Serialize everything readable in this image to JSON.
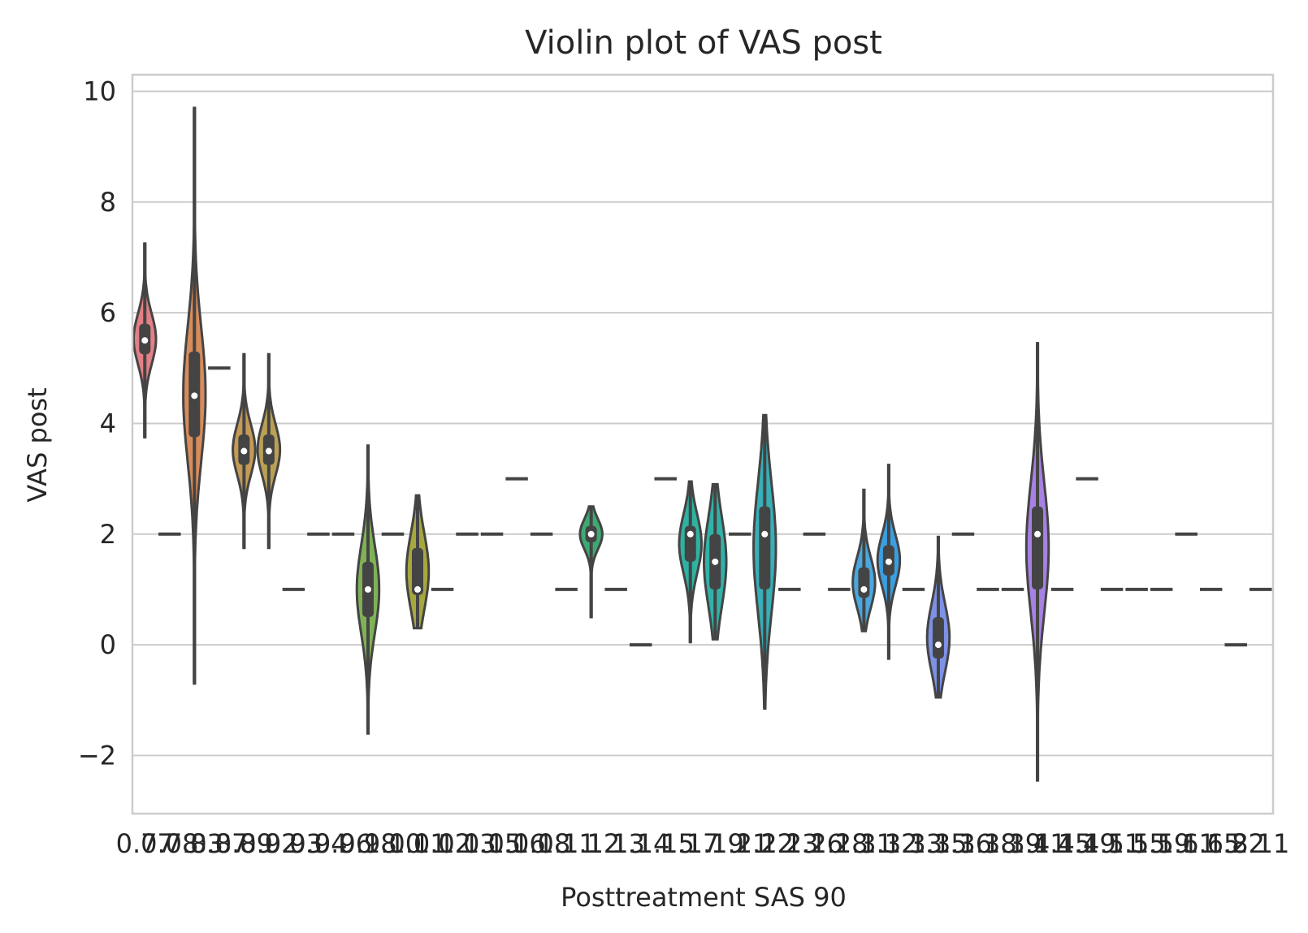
{
  "chart_data": {
    "type": "violin",
    "title": "Violin plot of VAS post",
    "xlabel": "Posttreatment SAS 90",
    "ylabel": "VAS post",
    "ylim": [
      -3.05,
      10.3
    ],
    "yticks": [
      -2,
      0,
      2,
      4,
      6,
      8,
      10
    ],
    "ytick_labels": [
      "−2",
      "0",
      "2",
      "4",
      "6",
      "8",
      "10"
    ],
    "grid": true,
    "groups": [
      {
        "label": "0.77",
        "type": "violin",
        "color": "#e37f86",
        "min": 3.75,
        "max": 7.25,
        "q1": 5.25,
        "q3": 5.8,
        "median": 5.5
      },
      {
        "label": "0.78",
        "type": "single",
        "color": "#e0866e",
        "value": 2
      },
      {
        "label": "0.83",
        "type": "violin",
        "color": "#d88c5a",
        "min": -0.7,
        "max": 9.7,
        "q1": 3.75,
        "q3": 5.3,
        "median": 4.5
      },
      {
        "label": "0.87",
        "type": "single",
        "color": "#cf9456",
        "value": 5
      },
      {
        "label": "0.89",
        "type": "violin",
        "color": "#c49a56",
        "min": 1.75,
        "max": 5.25,
        "q1": 3.25,
        "q3": 3.8,
        "median": 3.5
      },
      {
        "label": "0.92",
        "type": "violin",
        "color": "#b9a056",
        "min": 1.75,
        "max": 5.25,
        "q1": 3.25,
        "q3": 3.8,
        "median": 3.5
      },
      {
        "label": "0.93",
        "type": "single",
        "color": "#aba556",
        "value": 1
      },
      {
        "label": "0.94",
        "type": "single",
        "color": "#9ea956",
        "value": 2
      },
      {
        "label": "0.96",
        "type": "single",
        "color": "#8fae56",
        "value": 2
      },
      {
        "label": "0.98",
        "type": "violin",
        "color": "#7fb256",
        "min": -1.6,
        "max": 3.6,
        "q1": 0.5,
        "q3": 1.5,
        "median": 1
      },
      {
        "label": "1.00",
        "type": "single",
        "color": "#6eb55e",
        "value": 2
      },
      {
        "label": "1.01",
        "type": "violin",
        "color": "#a6a83e",
        "min": 0.3,
        "max": 2.7,
        "q1": 0.9,
        "q3": 1.75,
        "median": 1
      },
      {
        "label": "1.02",
        "type": "single",
        "color": "#56b86b",
        "value": 1
      },
      {
        "label": "1.03",
        "type": "single",
        "color": "#4fba78",
        "value": 2
      },
      {
        "label": "1.05",
        "type": "single",
        "color": "#4bbb85",
        "value": 2
      },
      {
        "label": "1.06",
        "type": "single",
        "color": "#48bb92",
        "value": 3
      },
      {
        "label": "1.08",
        "type": "single",
        "color": "#46bb9e",
        "value": 2
      },
      {
        "label": "1.11",
        "type": "single",
        "color": "#44baaa",
        "value": 1
      },
      {
        "label": "1.12",
        "type": "violin",
        "color": "#3daa72",
        "min": 0.5,
        "max": 2.5,
        "q1": 1.85,
        "q3": 2.15,
        "median": 2
      },
      {
        "label": "1.13",
        "type": "single",
        "color": "#43b8b8",
        "value": 1
      },
      {
        "label": "1.14",
        "type": "single",
        "color": "#43b6c3",
        "value": 0
      },
      {
        "label": "1.15",
        "type": "single",
        "color": "#45b3cd",
        "value": 3
      },
      {
        "label": "1.17",
        "type": "violin",
        "color": "#2fb2a2",
        "min": 0.05,
        "max": 2.95,
        "q1": 1.5,
        "q3": 2.15,
        "median": 2
      },
      {
        "label": "1.19",
        "type": "violin",
        "color": "#31b2a9",
        "min": 0.1,
        "max": 2.9,
        "q1": 1.0,
        "q3": 2.0,
        "median": 1.5
      },
      {
        "label": "1.21",
        "type": "single",
        "color": "#4aaedb",
        "value": 2
      },
      {
        "label": "1.22",
        "type": "violin",
        "color": "#38aeb6",
        "min": -1.15,
        "max": 4.15,
        "q1": 1.0,
        "q3": 2.5,
        "median": 2
      },
      {
        "label": "1.23",
        "type": "single",
        "color": "#55a8e8",
        "value": 1
      },
      {
        "label": "1.26",
        "type": "single",
        "color": "#5fa3ec",
        "value": 2
      },
      {
        "label": "1.28",
        "type": "single",
        "color": "#6a9ef0",
        "value": 1
      },
      {
        "label": "1.31",
        "type": "violin",
        "color": "#4aa8df",
        "min": 0.25,
        "max": 2.8,
        "q1": 0.85,
        "q3": 1.4,
        "median": 1
      },
      {
        "label": "1.32",
        "type": "violin",
        "color": "#3b9ee0",
        "min": -0.25,
        "max": 3.25,
        "q1": 1.25,
        "q3": 1.8,
        "median": 1.5
      },
      {
        "label": "1.33",
        "type": "single",
        "color": "#8a93f3",
        "value": 1
      },
      {
        "label": "1.35",
        "type": "violin",
        "color": "#7d91e6",
        "min": -0.95,
        "max": 1.95,
        "q1": -0.25,
        "q3": 0.5,
        "median": 0
      },
      {
        "label": "1.36",
        "type": "single",
        "color": "#9f8ef3",
        "value": 2
      },
      {
        "label": "1.38",
        "type": "single",
        "color": "#ad89f2",
        "value": 1
      },
      {
        "label": "1.39",
        "type": "single",
        "color": "#b985ef",
        "value": 1
      },
      {
        "label": "1.41",
        "type": "violin",
        "color": "#a781e4",
        "min": -2.45,
        "max": 5.45,
        "q1": 1.0,
        "q3": 2.5,
        "median": 2
      },
      {
        "label": "1.45",
        "type": "single",
        "color": "#cf7ee2",
        "value": 1
      },
      {
        "label": "1.49",
        "type": "single",
        "color": "#d97bd8",
        "value": 3
      },
      {
        "label": "1.51",
        "type": "single",
        "color": "#e079cc",
        "value": 1
      },
      {
        "label": "1.55",
        "type": "single",
        "color": "#e57abf",
        "value": 1
      },
      {
        "label": "1.59",
        "type": "single",
        "color": "#e87cb1",
        "value": 1
      },
      {
        "label": "1.61",
        "type": "single",
        "color": "#ea7fa3",
        "value": 2
      },
      {
        "label": "1.65",
        "type": "single",
        "color": "#eb8196",
        "value": 1
      },
      {
        "label": "1.82",
        "type": "single",
        "color": "#ec8489",
        "value": 0
      },
      {
        "label": "2.11",
        "type": "single",
        "color": "#ec867d",
        "value": 1
      }
    ]
  }
}
